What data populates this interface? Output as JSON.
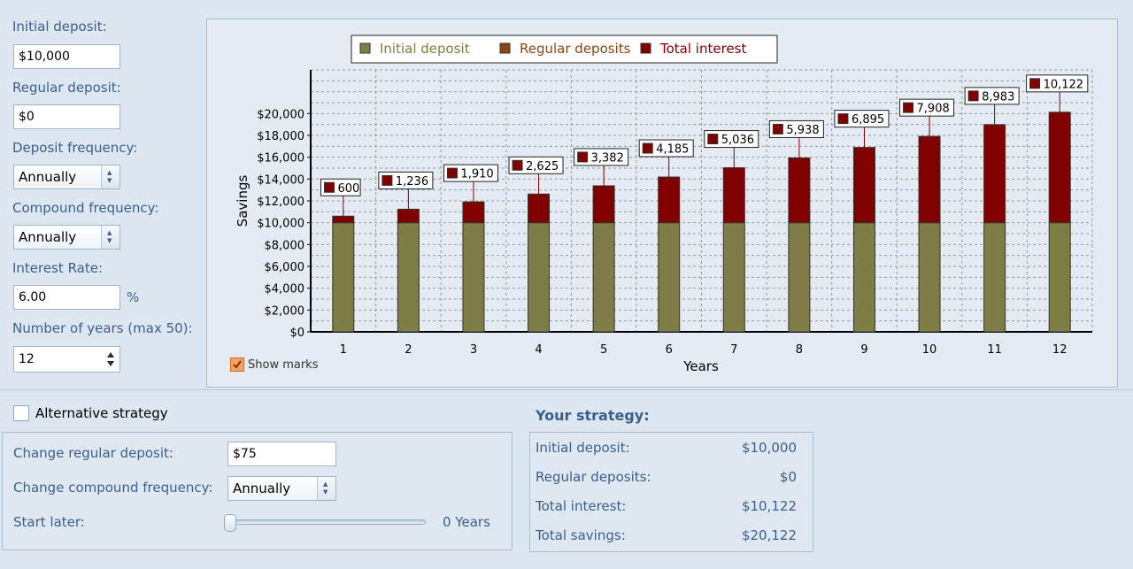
{
  "left_panel": {
    "initial_deposit": {
      "label": "Initial deposit:",
      "value": "$10,000"
    },
    "regular_deposit": {
      "label": "Regular deposit:",
      "value": "$0"
    },
    "deposit_frequency": {
      "label": "Deposit frequency:",
      "value": "Annually"
    },
    "compound_frequency": {
      "label": "Compound frequency:",
      "value": "Annually"
    },
    "interest_rate": {
      "label": "Interest Rate:",
      "value": "6.00",
      "unit": "%"
    },
    "years": {
      "label": "Number of years (max 50):",
      "value": "12"
    }
  },
  "chart_options": {
    "show_marks_label": "Show marks",
    "show_marks_checked": true
  },
  "alternative": {
    "checkbox_label": "Alternative strategy",
    "checked": false,
    "change_regular_deposit": {
      "label": "Change regular deposit:",
      "value": "$75"
    },
    "change_compound_frequency": {
      "label": "Change compound frequency:",
      "value": "Annually"
    },
    "start_later": {
      "label": "Start later:",
      "value_text": "0 Years",
      "value": 0
    }
  },
  "summary": {
    "title": "Your strategy:",
    "rows": [
      {
        "label": "Initial deposit:",
        "value": "$10,000"
      },
      {
        "label": "Regular deposits:",
        "value": "$0"
      },
      {
        "label": "Total interest:",
        "value": "$10,122"
      },
      {
        "label": "Total savings:",
        "value": "$20,122"
      }
    ]
  },
  "colors": {
    "initial": "#7d7d45",
    "regular": "#8b4513",
    "interest": "#800000",
    "accent": "#3a5f8c"
  },
  "chart_data": {
    "type": "bar",
    "stacked": true,
    "xlabel": "Years",
    "ylabel": "Savings",
    "ylim": [
      0,
      24000
    ],
    "yticks": [
      0,
      2000,
      4000,
      6000,
      8000,
      10000,
      12000,
      14000,
      16000,
      18000,
      20000
    ],
    "ytick_labels": [
      "$0",
      "$2,000",
      "$4,000",
      "$6,000",
      "$8,000",
      "$10,000",
      "$12,000",
      "$14,000",
      "$16,000",
      "$18,000",
      "$20,000"
    ],
    "categories": [
      "1",
      "2",
      "3",
      "4",
      "5",
      "6",
      "7",
      "8",
      "9",
      "10",
      "11",
      "12"
    ],
    "legend": [
      "Initial deposit",
      "Regular deposits",
      "Total interest"
    ],
    "series": [
      {
        "name": "Initial deposit",
        "values": [
          10000,
          10000,
          10000,
          10000,
          10000,
          10000,
          10000,
          10000,
          10000,
          10000,
          10000,
          10000
        ]
      },
      {
        "name": "Regular deposits",
        "values": [
          0,
          0,
          0,
          0,
          0,
          0,
          0,
          0,
          0,
          0,
          0,
          0
        ]
      },
      {
        "name": "Total interest",
        "values": [
          600,
          1236,
          1910,
          2625,
          3382,
          4185,
          5036,
          5938,
          6895,
          7908,
          8983,
          10122
        ]
      }
    ],
    "mark_labels": [
      "600",
      "1,236",
      "1,910",
      "2,625",
      "3,382",
      "4,185",
      "5,036",
      "5,938",
      "6,895",
      "7,908",
      "8,983",
      "10,122"
    ]
  }
}
